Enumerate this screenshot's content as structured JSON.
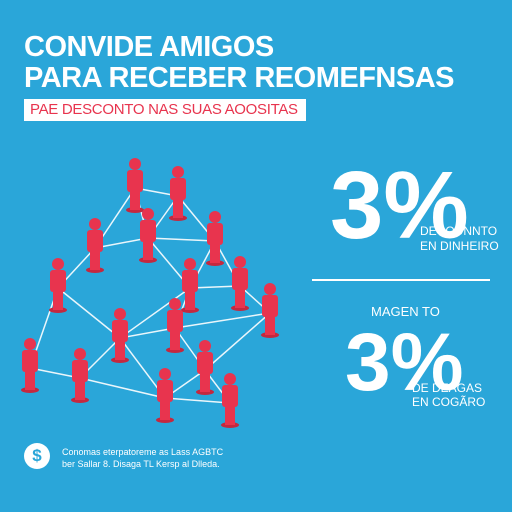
{
  "headline": {
    "line1": "CONVIDE AMIGOS",
    "line2": "PARA RECEBER REOMEFNSAS"
  },
  "ribbon": "PAE DESCONTO NAS SUAS AOOSITAS",
  "offer1": {
    "value": "3%",
    "caption_line1": "DECOUNNTO",
    "caption_line2": "EN DINHEIRO"
  },
  "middle_label": "MAGEN TO",
  "offer2": {
    "value": "3%",
    "caption_line1": "DE DEAGAS",
    "caption_line2": "EN COGÃRO"
  },
  "footer": {
    "logo_glyph": "$",
    "line1": "Conomas eterpatoreme as Lass AGBTC",
    "line2": "ber Sallar 8. Disaga TL Kersp al Dlleda."
  },
  "colors": {
    "background": "#2aa6d9",
    "accent": "#e8344e",
    "figure": "#e8344e",
    "text": "#ffffff"
  },
  "icons": {
    "network": "people-network-illustration",
    "logo": "dollar-coin-icon"
  }
}
